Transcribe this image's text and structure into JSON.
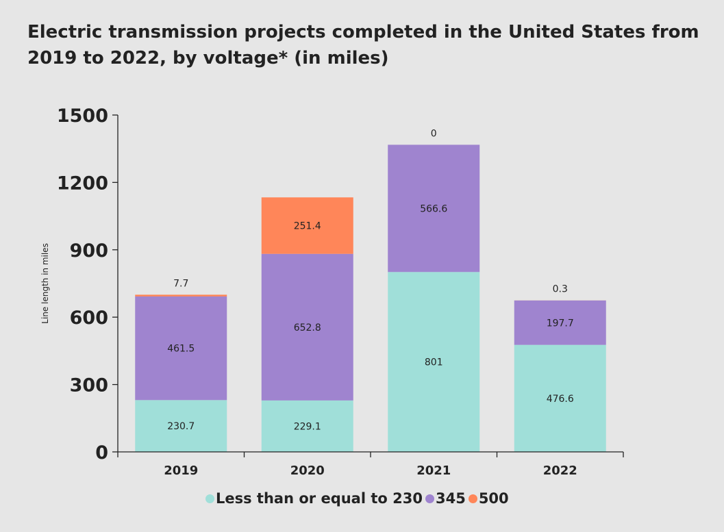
{
  "chart_data": {
    "type": "bar",
    "stacked": true,
    "title": "Electric transmission projects completed in the United States from 2019 to 2022, by voltage* (in miles)",
    "xlabel": "",
    "ylabel": "Line length in miles",
    "ylim": [
      0,
      1500
    ],
    "yticks": [
      0,
      300,
      600,
      900,
      1200,
      1500
    ],
    "grid": false,
    "legend_position": "bottom",
    "categories": [
      "2019",
      "2020",
      "2021",
      "2022"
    ],
    "series": [
      {
        "name": "Less than or equal to 230",
        "color": "#a0dfd9",
        "values": [
          230.7,
          229.1,
          801,
          476.6
        ],
        "labels": [
          "230.7",
          "229.1",
          "801",
          "476.6"
        ]
      },
      {
        "name": "345",
        "color": "#9f84cf",
        "values": [
          461.5,
          652.8,
          566.6,
          197.7
        ],
        "labels": [
          "461.5",
          "652.8",
          "566.6",
          "197.7"
        ]
      },
      {
        "name": "500",
        "color": "#ff8659",
        "values": [
          7.7,
          251.4,
          0,
          0.3
        ],
        "labels": [
          "7.7",
          "251.4",
          "0",
          "0.3"
        ]
      }
    ]
  }
}
